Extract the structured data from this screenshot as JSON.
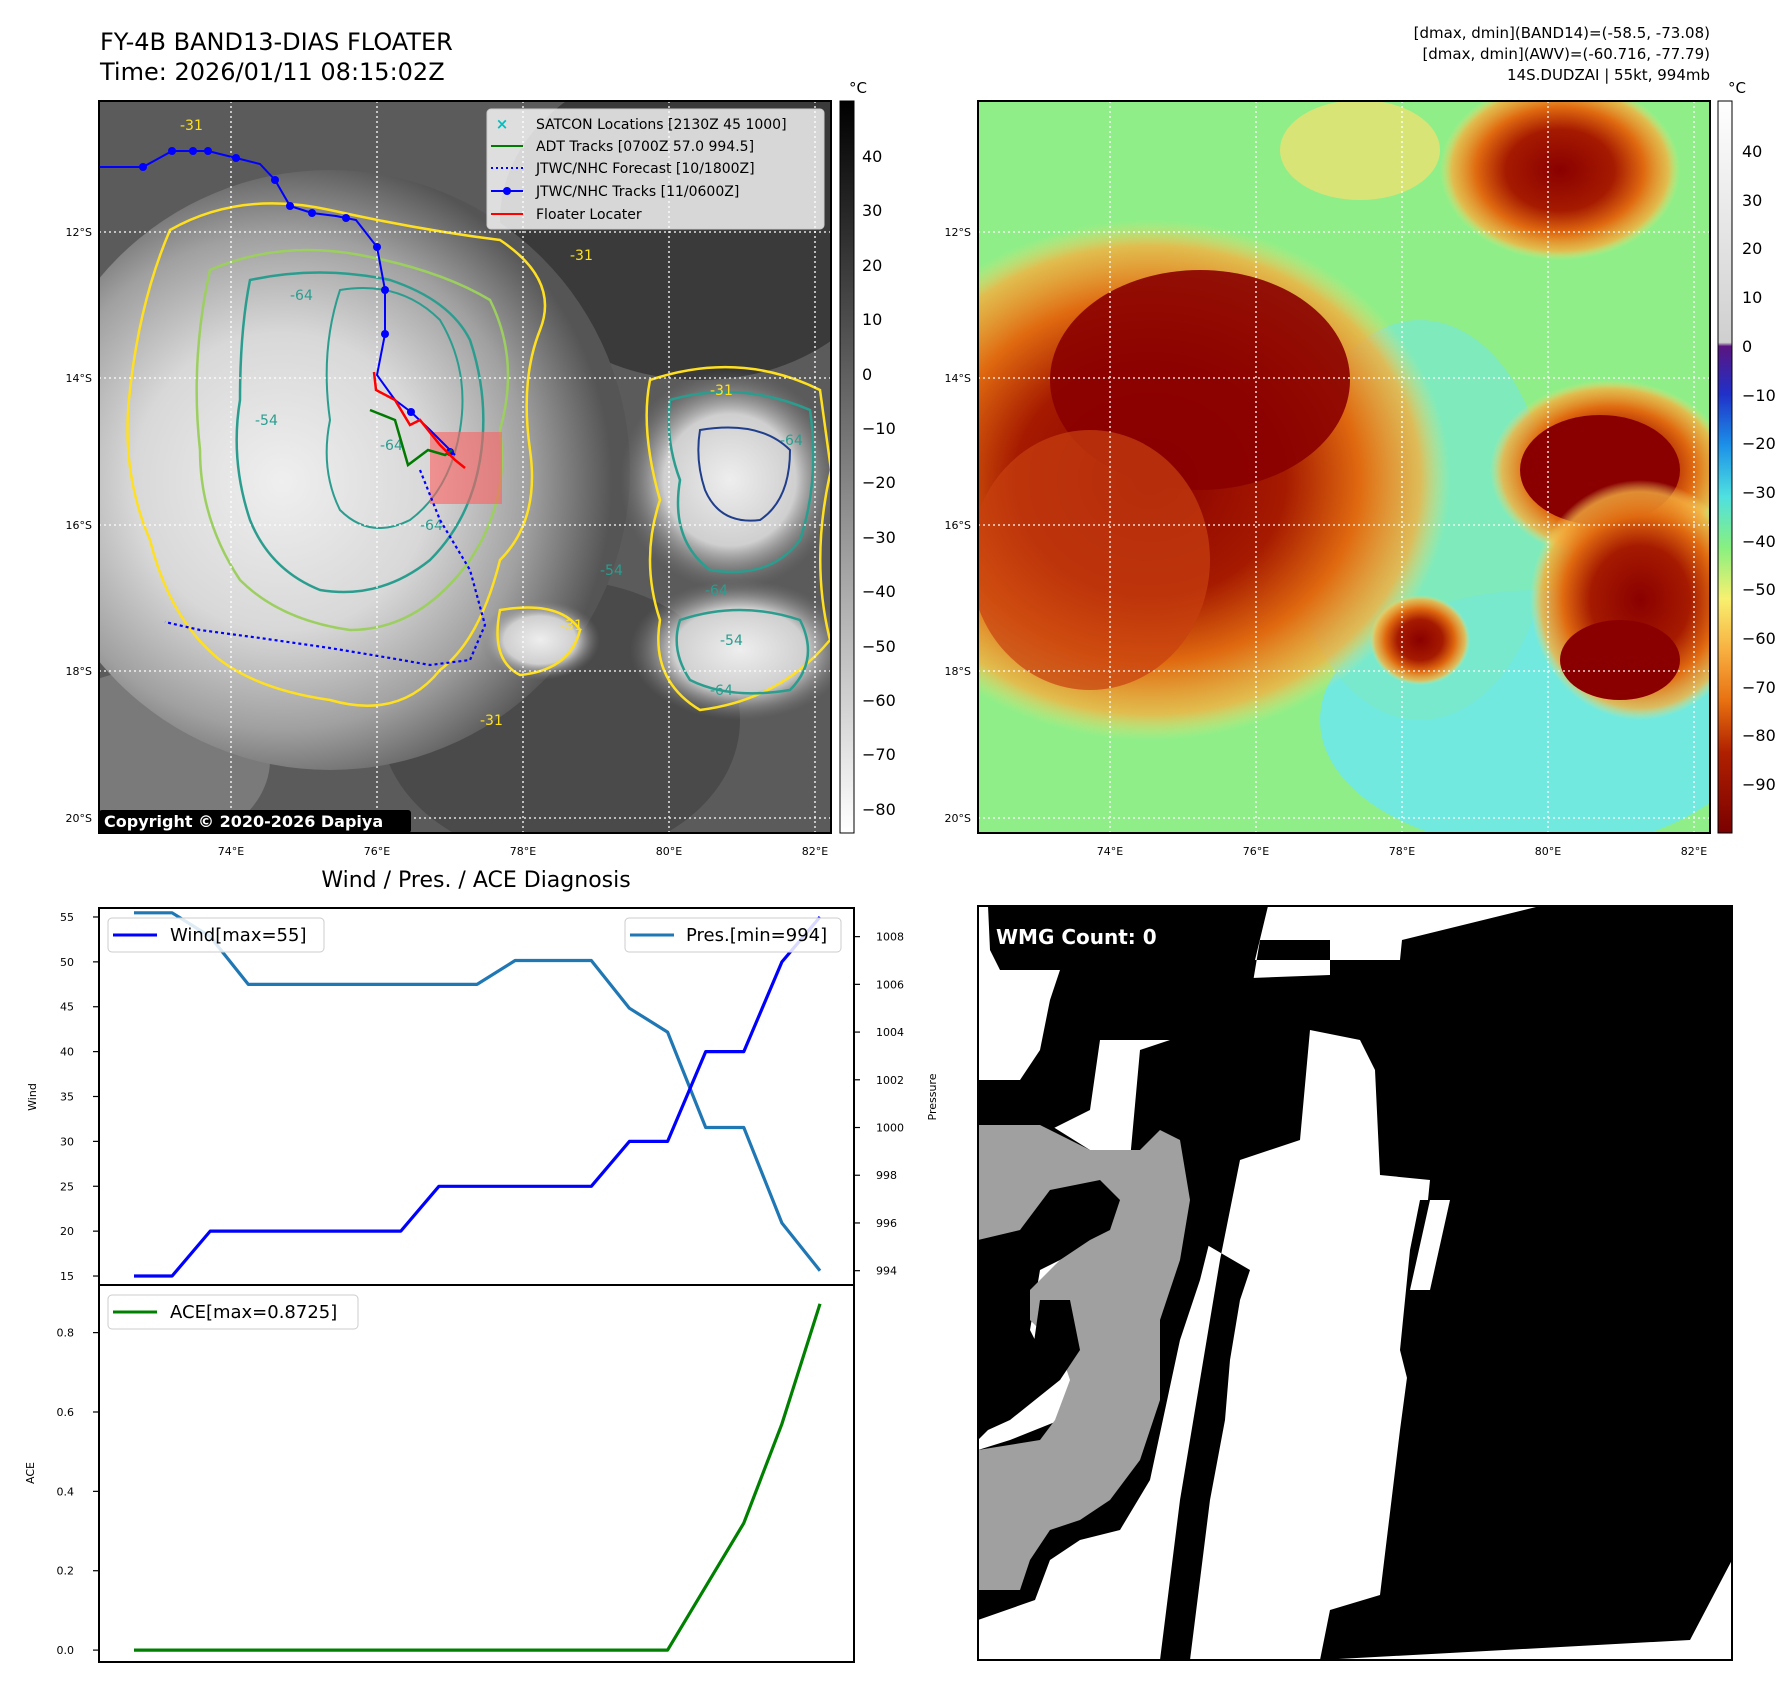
{
  "header": {
    "title": "FY-4B BAND13-DIAS FLOATER",
    "time": "Time: 2026/01/11 08:15:02Z",
    "info_line1": "[dmax, dmin](BAND14)=(-58.5, -73.08)",
    "info_line2": "[dmax, dmin](AWV)=(-60.716, -77.79)",
    "info_line3": "14S.DUDZAI | 55kt, 994mb"
  },
  "map_axes": {
    "lat_labels": [
      "12°S",
      "14°S",
      "16°S",
      "18°S",
      "20°S"
    ],
    "lon_labels": [
      "74°E",
      "76°E",
      "78°E",
      "80°E",
      "82°E"
    ]
  },
  "ir_panel": {
    "legend": [
      {
        "label": "SATCON Locations [2130Z 45 1000]",
        "color": "#00bfbf",
        "style": "x"
      },
      {
        "label": "ADT Tracks [0700Z 57.0 994.5]",
        "color": "#007a00",
        "style": "solid"
      },
      {
        "label": "JTWC/NHC Forecast [10/1800Z]",
        "color": "#0000ff",
        "style": "dotted"
      },
      {
        "label": "JTWC/NHC Tracks [11/0600Z]",
        "color": "#0000ff",
        "style": "solid-dot"
      },
      {
        "label": "Floater Locater",
        "color": "#ff0000",
        "style": "solid"
      }
    ],
    "contour_labels": [
      "-31",
      "-31",
      "-31",
      "-31",
      "-31",
      "-64",
      "-64",
      "-64",
      "-64",
      "-54",
      "-54",
      "-64",
      "-64",
      "-54"
    ],
    "copyright": "Copyright © 2020-2026 Dapiya",
    "colorbar_unit": "°C",
    "colorbar_ticks": [
      "40",
      "30",
      "20",
      "10",
      "0",
      "−10",
      "−20",
      "−30",
      "−40",
      "−50",
      "−60",
      "−70",
      "−80"
    ],
    "colors": {
      "contour_31": "#ffe020",
      "contour_54": "#9ccf5f",
      "contour_64": "#2a9d8f",
      "contour_cold": "#1f3e8c"
    }
  },
  "awv_panel": {
    "colorbar_unit": "°C",
    "colorbar_ticks": [
      "40",
      "30",
      "20",
      "10",
      "0",
      "−10",
      "−20",
      "−30",
      "−40",
      "−50",
      "−60",
      "−70",
      "−80",
      "−90"
    ]
  },
  "chart_data": [
    {
      "type": "line",
      "title": "Wind / Pres. / ACE Diagnosis",
      "ylabel": "Wind",
      "ylim": [
        14,
        56
      ],
      "y_ticks": [
        "55",
        "50",
        "45",
        "40",
        "35",
        "30",
        "25",
        "20",
        "15"
      ],
      "series": [
        {
          "name": "Wind[max=55]",
          "color": "#0000ff",
          "axis": "left",
          "values": [
            15,
            15,
            20,
            20,
            20,
            20,
            20,
            20,
            25,
            25,
            25,
            25,
            25,
            30,
            30,
            40,
            40,
            50,
            55
          ]
        }
      ]
    },
    {
      "type": "line",
      "ylabel": "Pressure",
      "ylim": [
        993.4,
        1009.2
      ],
      "y_ticks": [
        "1008",
        "1006",
        "1004",
        "1002",
        "1000",
        "998",
        "996",
        "994"
      ],
      "series": [
        {
          "name": "Pres.[min=994]",
          "color": "#1f77b4",
          "axis": "right",
          "values": [
            1009,
            1009,
            1008,
            1006,
            1006,
            1006,
            1006,
            1006,
            1006,
            1006,
            1007,
            1007,
            1007,
            1005,
            1004,
            1000,
            1000,
            996,
            994
          ]
        }
      ]
    },
    {
      "type": "line",
      "ylabel": "ACE",
      "ylim": [
        -0.03,
        0.92
      ],
      "y_ticks": [
        "0.8",
        "0.6",
        "0.4",
        "0.2",
        "0.0"
      ],
      "series": [
        {
          "name": "ACE[max=0.8725]",
          "color": "#008000",
          "values": [
            0,
            0,
            0,
            0,
            0,
            0,
            0,
            0,
            0,
            0,
            0,
            0,
            0,
            0,
            0,
            0.16,
            0.32,
            0.57,
            0.8725
          ]
        }
      ]
    }
  ],
  "wmg_panel": {
    "label": "WMG Count: 0"
  }
}
